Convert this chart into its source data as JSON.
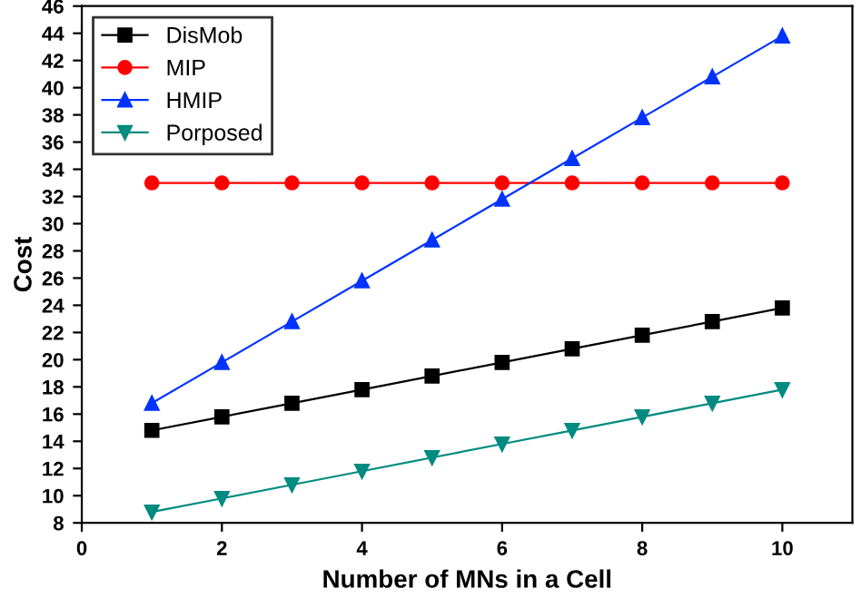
{
  "chart_data": {
    "type": "line",
    "xlabel": "Number of MNs in a Cell",
    "ylabel": "Cost",
    "x": [
      1,
      2,
      3,
      4,
      5,
      6,
      7,
      8,
      9,
      10
    ],
    "series": [
      {
        "name": "DisMob",
        "color": "#000000",
        "marker": "square",
        "values": [
          14.8,
          15.8,
          16.8,
          17.8,
          18.8,
          19.8,
          20.8,
          21.8,
          22.8,
          23.8
        ]
      },
      {
        "name": "MIP",
        "color": "#ff0000",
        "marker": "circle",
        "values": [
          33,
          33,
          33,
          33,
          33,
          33,
          33,
          33,
          33,
          33
        ]
      },
      {
        "name": "HMIP",
        "color": "#0033ff",
        "marker": "triangle",
        "values": [
          16.8,
          19.8,
          22.8,
          25.8,
          28.8,
          31.8,
          34.8,
          37.8,
          40.8,
          43.8
        ]
      },
      {
        "name": "Porposed",
        "color": "#008b80",
        "marker": "triangle_down",
        "values": [
          8.8,
          9.8,
          10.8,
          11.8,
          12.8,
          13.8,
          14.8,
          15.8,
          16.8,
          17.8
        ]
      }
    ],
    "xlim": [
      0,
      11
    ],
    "xticks": [
      0,
      2,
      4,
      6,
      8,
      10
    ],
    "ylim": [
      8,
      46
    ],
    "yticks": [
      8,
      10,
      12,
      14,
      16,
      18,
      20,
      22,
      24,
      26,
      28,
      30,
      32,
      34,
      36,
      38,
      40,
      42,
      44,
      46
    ],
    "grid": false,
    "legend": "top left",
    "line_style": "solid"
  }
}
